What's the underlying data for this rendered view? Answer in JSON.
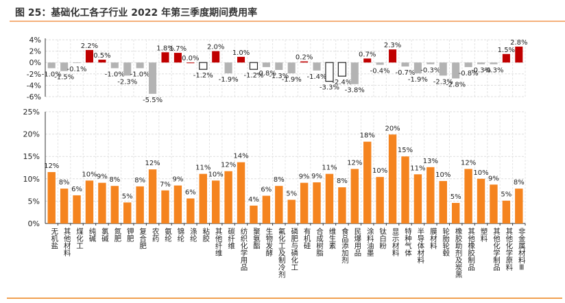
{
  "title": "图 25：基础化工各子行业 2022 年第三季度期间费用率",
  "colors": {
    "positive": "#C00000",
    "negative": "#B3B3B3",
    "hollow_stroke": "#222222",
    "bars_bottom": "#F5841F",
    "rule": "#F0A050"
  },
  "chart_data": [
    {
      "type": "bar",
      "title": "",
      "xlabel": "",
      "ylabel": "",
      "ylim": [
        -6,
        4
      ],
      "yticks": [
        "4%",
        "2%",
        "0%",
        "-2%",
        "-4%",
        "-6%"
      ],
      "ytick_values": [
        4,
        2,
        0,
        -2,
        -4,
        -6
      ],
      "grid": true,
      "categories": [
        "无机盐",
        "其他材料",
        "煤化工",
        "纯碱",
        "氯碱",
        "氮肥",
        "钾肥",
        "复合肥",
        "农药",
        "氨纶",
        "锦纶",
        "涤纶",
        "粘胶",
        "其他纤维",
        "碳纤维",
        "纺织化学用品",
        "聚氨酯",
        "生物发酵",
        "氟化工及制冷剂",
        "磷肥与磷化工",
        "有机硅",
        "合成树脂",
        "维生素",
        "食品添加剂",
        "民爆用品",
        "涂料油墨",
        "钛白粉",
        "显示材料",
        "特种气体",
        "半导体材料",
        "膜材料",
        "轮胎轮毂",
        "橡胶助剂及炭黑",
        "其他橡胶制品",
        "塑料",
        "其他化学制品",
        "其他化学原料",
        "非金属材料Ⅲ"
      ],
      "values": [
        -1.0,
        -1.5,
        -0.1,
        2.2,
        0.5,
        -1.0,
        -2.3,
        -1.0,
        -5.5,
        1.8,
        1.7,
        0.0,
        -1.2,
        2.0,
        -1.9,
        1.0,
        -1.2,
        -0.8,
        -1.3,
        -1.9,
        0.2,
        -1.4,
        -3.3,
        -2.4,
        -3.8,
        0.7,
        -0.4,
        2.3,
        -0.7,
        -1.9,
        -0.3,
        -2.3,
        -2.8,
        -0.8,
        -0.3,
        -0.3,
        1.5,
        2.8
      ],
      "labels": [
        "-1.0%",
        "-1.5%",
        "-0.1%",
        "2.2%",
        "0.5%",
        "-1.0%",
        "-2.3%",
        "-1.0%",
        "-5.5%",
        "1.8%",
        "1.7%",
        "0.0%",
        "-1.2%",
        "2.0%",
        "-1.9%",
        "1.0%",
        "-1.2%",
        "-0.8%",
        "-1.3%",
        "-1.9%",
        "0.2%",
        "-1.4%",
        "-3.3%",
        "-2.4%",
        "-3.8%",
        "0.7%",
        "-0.4%",
        "2.3%",
        "-0.7%",
        "-1.9%",
        "-0.3%",
        "-2.3%",
        "-2.8%",
        "-0.8%",
        "-0.3%",
        "-0.3%",
        "1.5%",
        "2.8%"
      ],
      "hollow_indices": [
        12,
        16,
        22,
        23
      ]
    },
    {
      "type": "bar",
      "title": "",
      "xlabel": "",
      "ylabel": "",
      "ylim": [
        0,
        25
      ],
      "yticks": [
        "25%",
        "20%",
        "15%",
        "10%",
        "5%",
        "0%"
      ],
      "ytick_values": [
        25,
        20,
        15,
        10,
        5,
        0
      ],
      "grid": true,
      "categories": [
        "无机盐",
        "其他材料",
        "煤化工",
        "纯碱",
        "氯碱",
        "氮肥",
        "钾肥",
        "复合肥",
        "农药",
        "氨纶",
        "锦纶",
        "涤纶",
        "粘胶",
        "其他纤维",
        "碳纤维",
        "纺织化学用品",
        "聚氨酯",
        "生物发酵",
        "氟化工及制冷剂",
        "磷肥与磷化工",
        "有机硅",
        "合成树脂",
        "维生素",
        "食品添加剂",
        "民爆用品",
        "涂料油墨",
        "钛白粉",
        "显示材料",
        "特种气体",
        "半导体材料",
        "膜材料",
        "轮胎轮毂",
        "橡胶助剂及炭黑",
        "其他橡胶制品",
        "塑料",
        "其他化学制品",
        "其他化学原料",
        "非金属材料Ⅲ"
      ],
      "values": [
        11.5,
        7.8,
        6.3,
        9.6,
        9.1,
        8.4,
        4.7,
        8.3,
        12.1,
        7.4,
        8.5,
        5.6,
        11.1,
        9.6,
        11.7,
        13.7,
        4.0,
        6.2,
        8.4,
        5.3,
        9.1,
        9.2,
        11.1,
        8.1,
        12.2,
        18.3,
        10.4,
        19.9,
        15.0,
        11.0,
        12.6,
        9.5,
        4.6,
        12.2,
        10.0,
        8.7,
        5.1,
        7.8
      ],
      "labels": [
        "12%",
        "8%",
        "6%",
        "10%",
        "9%",
        "8%",
        "5%",
        "8%",
        "12%",
        "7%",
        "9%",
        "6%",
        "11%",
        "10%",
        "12%",
        "14%",
        "4%",
        "6%",
        "8%",
        "5%",
        "9%",
        "9%",
        "11%",
        "8%",
        "12%",
        "18%",
        "10%",
        "20%",
        "15%",
        "11%",
        "13%",
        "10%",
        "5%",
        "12%",
        "10%",
        "9%",
        "5%",
        "8%"
      ]
    }
  ]
}
